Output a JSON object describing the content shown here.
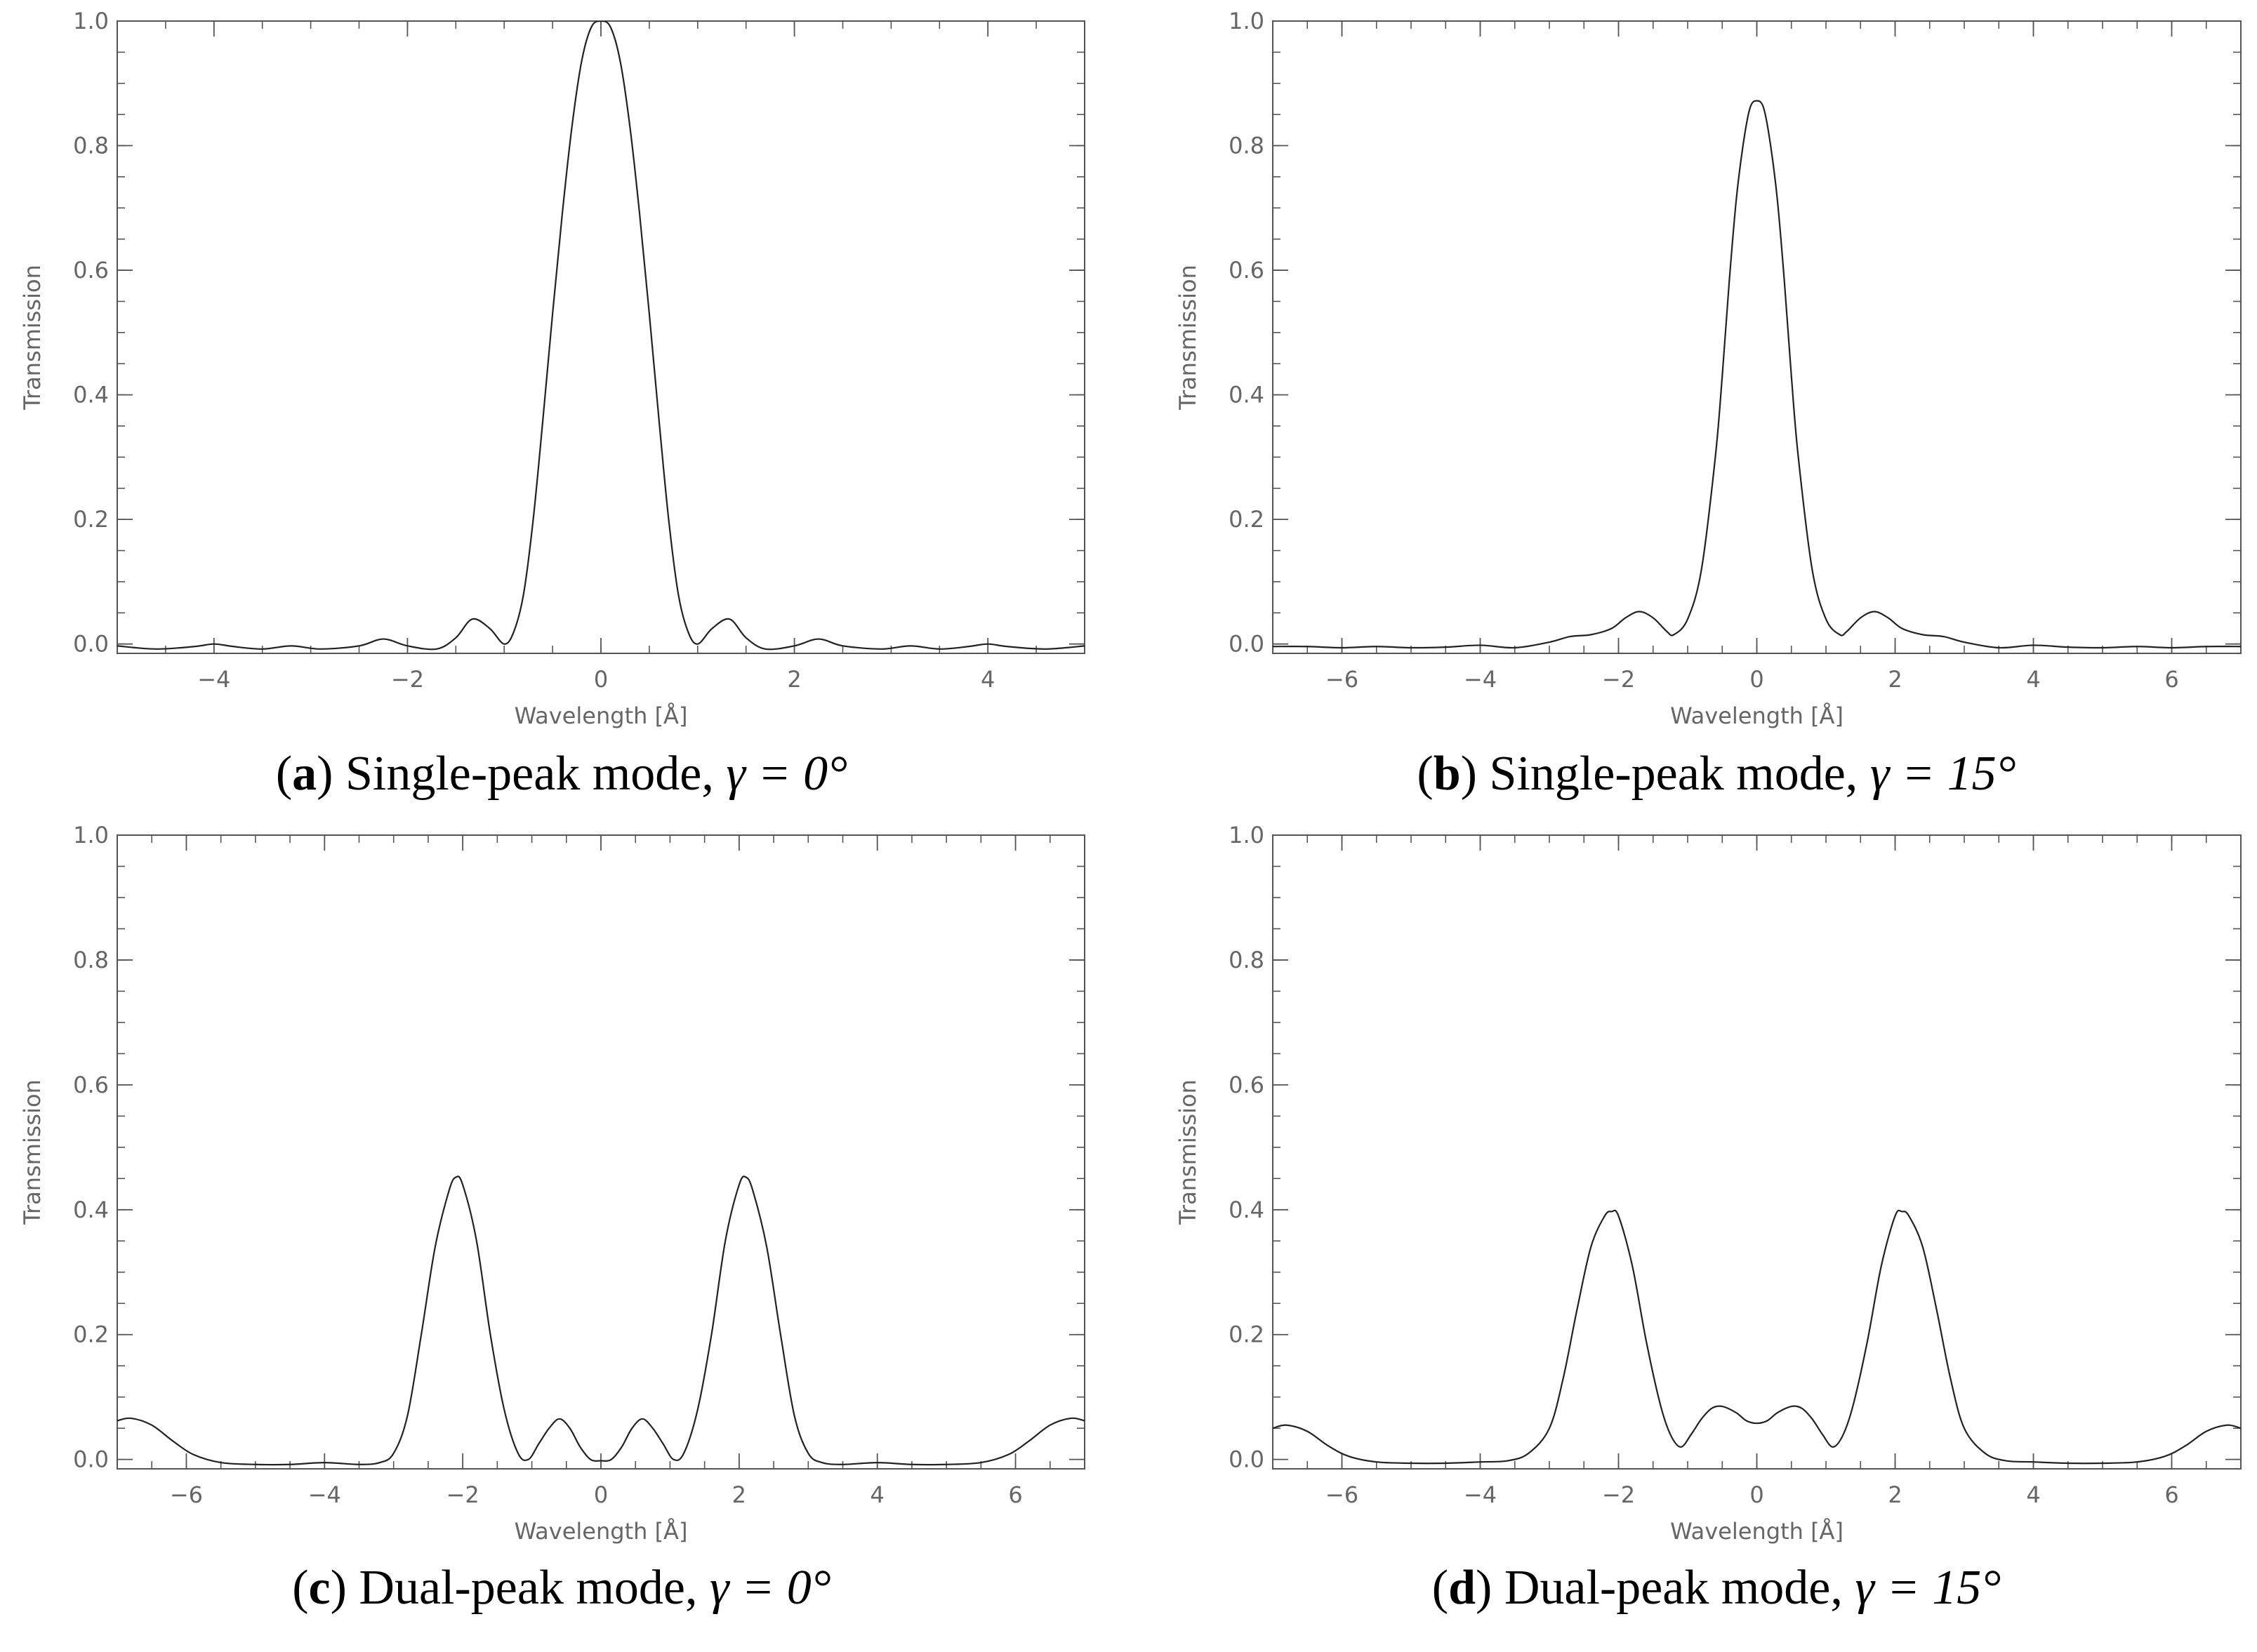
{
  "chart_data": [
    {
      "type": "line",
      "panel_label": "a",
      "caption_text": "Single-peak mode, ",
      "caption_math": "γ = 0°",
      "xlabel": "Wavelength [Å]",
      "ylabel": "Transmission",
      "xlim": [
        -5,
        5
      ],
      "ylim": [
        -0.015,
        1.0
      ],
      "xticks": [
        -4,
        -2,
        0,
        2,
        4
      ],
      "yticks": [
        0.0,
        0.2,
        0.4,
        0.6,
        0.8,
        1.0
      ],
      "x_minor_step": 0.5,
      "y_minor_step": 0.05,
      "series": [
        {
          "x": [
            -5,
            -4.6,
            -4.2,
            -4.0,
            -3.8,
            -3.5,
            -3.2,
            -2.9,
            -2.5,
            -2.25,
            -2.0,
            -1.7,
            -1.5,
            -1.33,
            -1.15,
            -1.0,
            -0.9,
            -0.8,
            -0.7,
            -0.6,
            -0.5,
            -0.4,
            -0.3,
            -0.2,
            -0.1,
            0,
            0.1,
            0.2,
            0.3,
            0.4,
            0.5,
            0.6,
            0.7,
            0.8,
            0.9,
            1.0,
            1.15,
            1.33,
            1.5,
            1.7,
            2.0,
            2.25,
            2.5,
            2.9,
            3.2,
            3.5,
            3.8,
            4.0,
            4.2,
            4.6,
            5
          ],
          "y": [
            -0.003,
            -0.008,
            -0.004,
            0.0,
            -0.004,
            -0.008,
            -0.003,
            -0.008,
            -0.003,
            0.008,
            -0.003,
            -0.008,
            0.01,
            0.04,
            0.025,
            0.0,
            0.02,
            0.08,
            0.2,
            0.36,
            0.53,
            0.69,
            0.83,
            0.935,
            0.99,
            1.0,
            0.99,
            0.935,
            0.83,
            0.69,
            0.53,
            0.36,
            0.2,
            0.08,
            0.02,
            0.0,
            0.025,
            0.04,
            0.01,
            -0.008,
            -0.003,
            0.008,
            -0.003,
            -0.008,
            -0.003,
            -0.008,
            -0.004,
            0.0,
            -0.004,
            -0.008,
            -0.003
          ]
        }
      ]
    },
    {
      "type": "line",
      "panel_label": "b",
      "caption_text": "Single-peak mode, ",
      "caption_math": "γ = 15°",
      "xlabel": "Wavelength [Å]",
      "ylabel": "Transmission",
      "xlim": [
        -7,
        7
      ],
      "ylim": [
        -0.015,
        1.0
      ],
      "xticks": [
        -6,
        -4,
        -2,
        0,
        2,
        4,
        6
      ],
      "yticks": [
        0.0,
        0.2,
        0.4,
        0.6,
        0.8,
        1.0
      ],
      "x_minor_step": 0.5,
      "y_minor_step": 0.05,
      "series": [
        {
          "x": [
            -7,
            -6.5,
            -6.0,
            -5.5,
            -5.0,
            -4.5,
            -4.0,
            -3.5,
            -3.0,
            -2.7,
            -2.4,
            -2.1,
            -1.9,
            -1.7,
            -1.5,
            -1.3,
            -1.2,
            -1.0,
            -0.8,
            -0.6,
            -0.5,
            -0.4,
            -0.3,
            -0.2,
            -0.1,
            0,
            0.1,
            0.2,
            0.3,
            0.4,
            0.5,
            0.6,
            0.8,
            1.0,
            1.2,
            1.3,
            1.5,
            1.7,
            1.9,
            2.1,
            2.4,
            2.7,
            3.0,
            3.5,
            4.0,
            4.5,
            5.0,
            5.5,
            6.0,
            6.5,
            7
          ],
          "y": [
            -0.004,
            -0.004,
            -0.006,
            -0.004,
            -0.006,
            -0.005,
            -0.002,
            -0.006,
            0.003,
            0.012,
            0.015,
            0.025,
            0.042,
            0.052,
            0.042,
            0.02,
            0.015,
            0.04,
            0.12,
            0.3,
            0.43,
            0.58,
            0.71,
            0.8,
            0.86,
            0.872,
            0.86,
            0.8,
            0.71,
            0.58,
            0.43,
            0.3,
            0.12,
            0.04,
            0.015,
            0.02,
            0.042,
            0.052,
            0.042,
            0.025,
            0.015,
            0.012,
            0.003,
            -0.006,
            -0.002,
            -0.005,
            -0.006,
            -0.004,
            -0.006,
            -0.004,
            -0.004
          ]
        }
      ]
    },
    {
      "type": "line",
      "panel_label": "c",
      "caption_text": "Dual-peak mode, ",
      "caption_math": "γ = 0°",
      "xlabel": "Wavelength [Å]",
      "ylabel": "Transmission",
      "xlim": [
        -7,
        7
      ],
      "ylim": [
        -0.015,
        1.0
      ],
      "xticks": [
        -6,
        -4,
        -2,
        0,
        2,
        4,
        6
      ],
      "yticks": [
        0.0,
        0.2,
        0.4,
        0.6,
        0.8,
        1.0
      ],
      "x_minor_step": 0.5,
      "y_minor_step": 0.05,
      "series": [
        {
          "x": [
            -7,
            -6.8,
            -6.5,
            -6.2,
            -5.9,
            -5.5,
            -5.0,
            -4.5,
            -4.0,
            -3.5,
            -3.2,
            -3.0,
            -2.8,
            -2.6,
            -2.4,
            -2.2,
            -2.1,
            -2.0,
            -1.8,
            -1.6,
            -1.4,
            -1.2,
            -1.05,
            -0.9,
            -0.75,
            -0.6,
            -0.45,
            -0.3,
            -0.15,
            0,
            0.15,
            0.3,
            0.45,
            0.6,
            0.75,
            0.9,
            1.05,
            1.2,
            1.4,
            1.6,
            1.8,
            2.0,
            2.1,
            2.2,
            2.4,
            2.6,
            2.8,
            3.0,
            3.2,
            3.5,
            4.0,
            4.5,
            5.0,
            5.5,
            5.9,
            6.2,
            6.5,
            6.8,
            7
          ],
          "y": [
            0.062,
            0.066,
            0.055,
            0.03,
            0.008,
            -0.005,
            -0.008,
            -0.008,
            -0.005,
            -0.008,
            -0.005,
            0.01,
            0.07,
            0.2,
            0.34,
            0.43,
            0.452,
            0.44,
            0.35,
            0.2,
            0.08,
            0.01,
            0.0,
            0.025,
            0.05,
            0.065,
            0.05,
            0.02,
            0.0,
            -0.002,
            0.0,
            0.02,
            0.05,
            0.065,
            0.05,
            0.025,
            0.0,
            0.01,
            0.08,
            0.2,
            0.35,
            0.44,
            0.452,
            0.43,
            0.34,
            0.2,
            0.07,
            0.01,
            -0.005,
            -0.008,
            -0.005,
            -0.008,
            -0.008,
            -0.005,
            0.008,
            0.03,
            0.055,
            0.066,
            0.062
          ]
        }
      ]
    },
    {
      "type": "line",
      "panel_label": "d",
      "caption_text": "Dual-peak mode, ",
      "caption_math": "γ = 15°",
      "xlabel": "Wavelength [Å]",
      "ylabel": "Transmission",
      "xlim": [
        -7,
        7
      ],
      "ylim": [
        -0.015,
        1.0
      ],
      "xticks": [
        -6,
        -4,
        -2,
        0,
        2,
        4,
        6
      ],
      "yticks": [
        0.0,
        0.2,
        0.4,
        0.6,
        0.8,
        1.0
      ],
      "x_minor_step": 0.5,
      "y_minor_step": 0.05,
      "series": [
        {
          "x": [
            -7,
            -6.8,
            -6.5,
            -6.2,
            -5.9,
            -5.5,
            -5.0,
            -4.5,
            -4.0,
            -3.6,
            -3.3,
            -3.0,
            -2.8,
            -2.6,
            -2.4,
            -2.2,
            -2.1,
            -2.0,
            -1.8,
            -1.6,
            -1.4,
            -1.25,
            -1.1,
            -0.95,
            -0.8,
            -0.65,
            -0.5,
            -0.3,
            -0.15,
            0,
            0.15,
            0.3,
            0.5,
            0.65,
            0.8,
            0.95,
            1.1,
            1.25,
            1.4,
            1.6,
            1.8,
            2.0,
            2.1,
            2.2,
            2.4,
            2.6,
            2.8,
            3.0,
            3.3,
            3.6,
            4.0,
            4.5,
            5.0,
            5.5,
            5.9,
            6.2,
            6.5,
            6.8,
            7
          ],
          "y": [
            0.05,
            0.055,
            0.045,
            0.022,
            0.005,
            -0.004,
            -0.006,
            -0.006,
            -0.004,
            -0.002,
            0.01,
            0.05,
            0.13,
            0.24,
            0.34,
            0.39,
            0.397,
            0.39,
            0.31,
            0.19,
            0.09,
            0.04,
            0.02,
            0.04,
            0.065,
            0.082,
            0.085,
            0.075,
            0.062,
            0.058,
            0.062,
            0.075,
            0.085,
            0.082,
            0.065,
            0.04,
            0.02,
            0.04,
            0.09,
            0.19,
            0.31,
            0.39,
            0.397,
            0.39,
            0.34,
            0.24,
            0.13,
            0.05,
            0.01,
            -0.002,
            -0.004,
            -0.006,
            -0.006,
            -0.004,
            0.005,
            0.022,
            0.045,
            0.055,
            0.05
          ]
        }
      ]
    }
  ]
}
